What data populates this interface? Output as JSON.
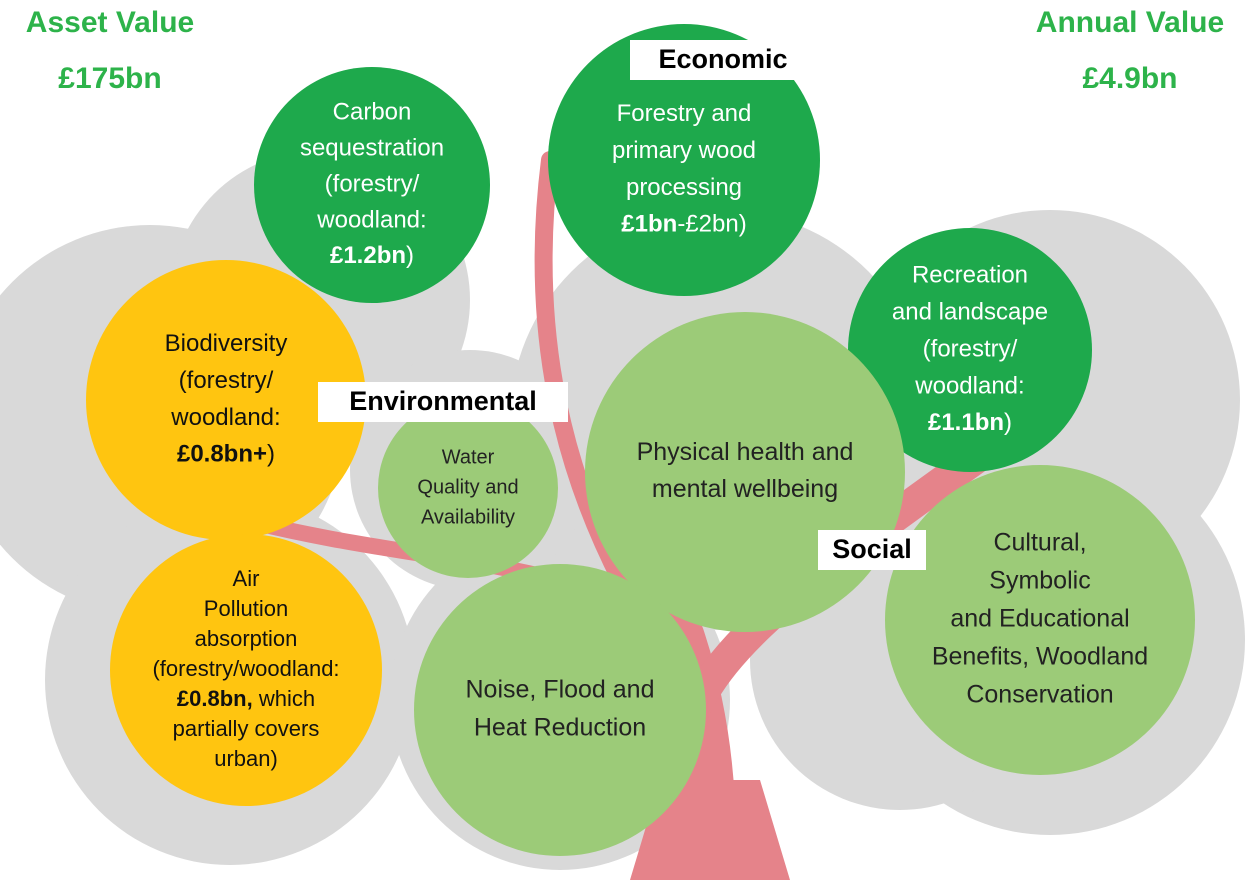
{
  "header": {
    "left": {
      "title": "Asset Value",
      "value": "£175bn"
    },
    "right": {
      "title": "Annual Value",
      "value": "£4.9bn"
    }
  },
  "labels": [
    "Economic",
    "Environmental",
    "Social"
  ],
  "nodes": [
    {
      "color": "#1ea94c",
      "text_color": "#ffffff",
      "lines": [
        "Carbon",
        "sequestration",
        "(forestry/",
        "woodland:",
        [
          {
            "text": "£1.2bn",
            "bold": true
          },
          {
            "text": ")",
            "bold": false
          }
        ]
      ]
    },
    {
      "color": "#1ea94c",
      "text_color": "#ffffff",
      "lines": [
        "Forestry  and",
        "primary wood",
        "processing",
        [
          {
            "text": "£1bn",
            "bold": true
          },
          {
            "text": "-£2bn)",
            "bold": false
          }
        ]
      ]
    },
    {
      "color": "#1ea94c",
      "text_color": "#ffffff",
      "lines": [
        "Recreation",
        "and landscape",
        "(forestry/",
        "woodland:",
        [
          {
            "text": "£1.1bn",
            "bold": true
          },
          {
            "text": ")",
            "bold": false
          }
        ]
      ]
    },
    {
      "color": "#ffc510",
      "text_color": "#111111",
      "lines": [
        "Biodiversity",
        "(forestry/",
        "woodland:",
        [
          {
            "text": "£0.8bn+",
            "bold": true
          },
          {
            "text": ")",
            "bold": false
          }
        ]
      ]
    },
    {
      "color": "#9ccb78",
      "text_color": "#222222",
      "lines": [
        "Water",
        "Quality and",
        "Availability"
      ]
    },
    {
      "color": "#9ccb78",
      "text_color": "#222222",
      "lines": [
        "Physical health and",
        "mental wellbeing"
      ]
    },
    {
      "color": "#9ccb78",
      "text_color": "#222222",
      "lines": [
        "Cultural,",
        "Symbolic",
        "and Educational",
        "Benefits, Woodland",
        "Conservation"
      ]
    },
    {
      "color": "#ffc510",
      "text_color": "#111111",
      "lines": [
        "Air",
        "Pollution",
        "absorption",
        "(forestry/woodland:",
        [
          {
            "text": "£0.8bn,",
            "bold": true
          },
          {
            "text": " which",
            "bold": false
          }
        ],
        "partially covers",
        "urban)"
      ]
    },
    {
      "color": "#9ccb78",
      "text_color": "#222222",
      "lines": [
        "Noise, Flood and",
        "Heat Reduction"
      ]
    }
  ]
}
